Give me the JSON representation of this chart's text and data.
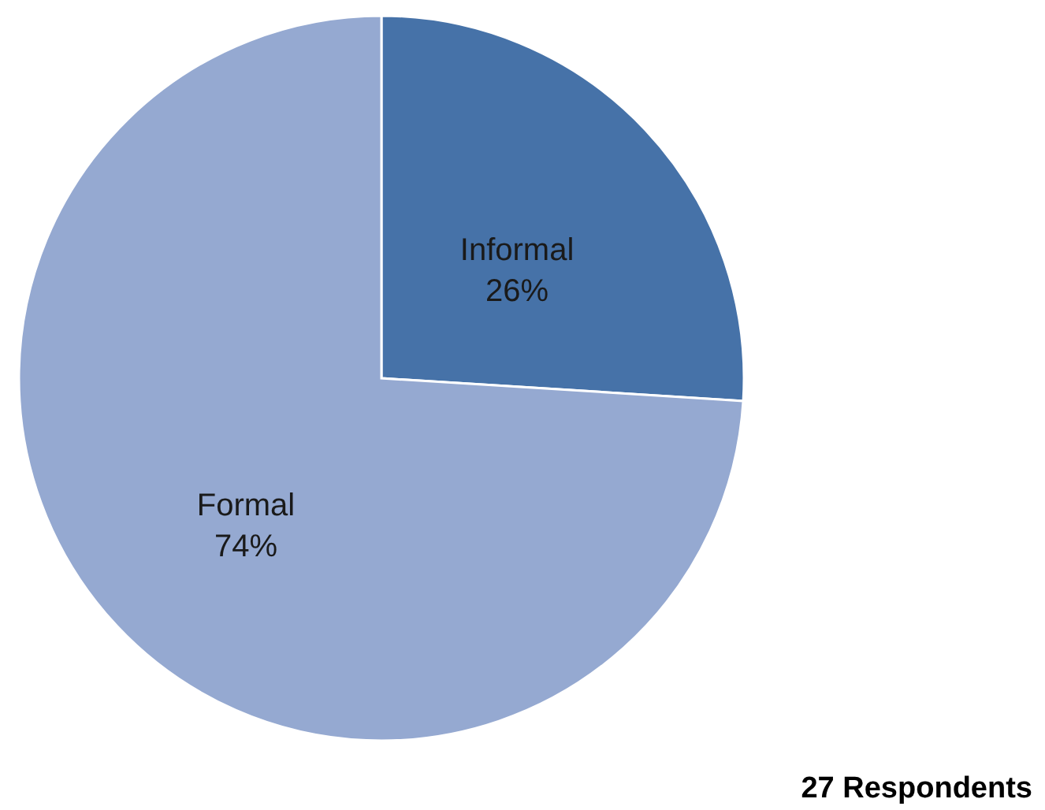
{
  "chart_data": {
    "type": "pie",
    "categories": [
      "Informal",
      "Formal"
    ],
    "values": [
      26,
      74
    ],
    "colors": [
      "#4672a8",
      "#95a9d1"
    ],
    "value_labels": [
      "26%",
      "74%"
    ],
    "annotations": [
      "27 Respondents"
    ]
  }
}
